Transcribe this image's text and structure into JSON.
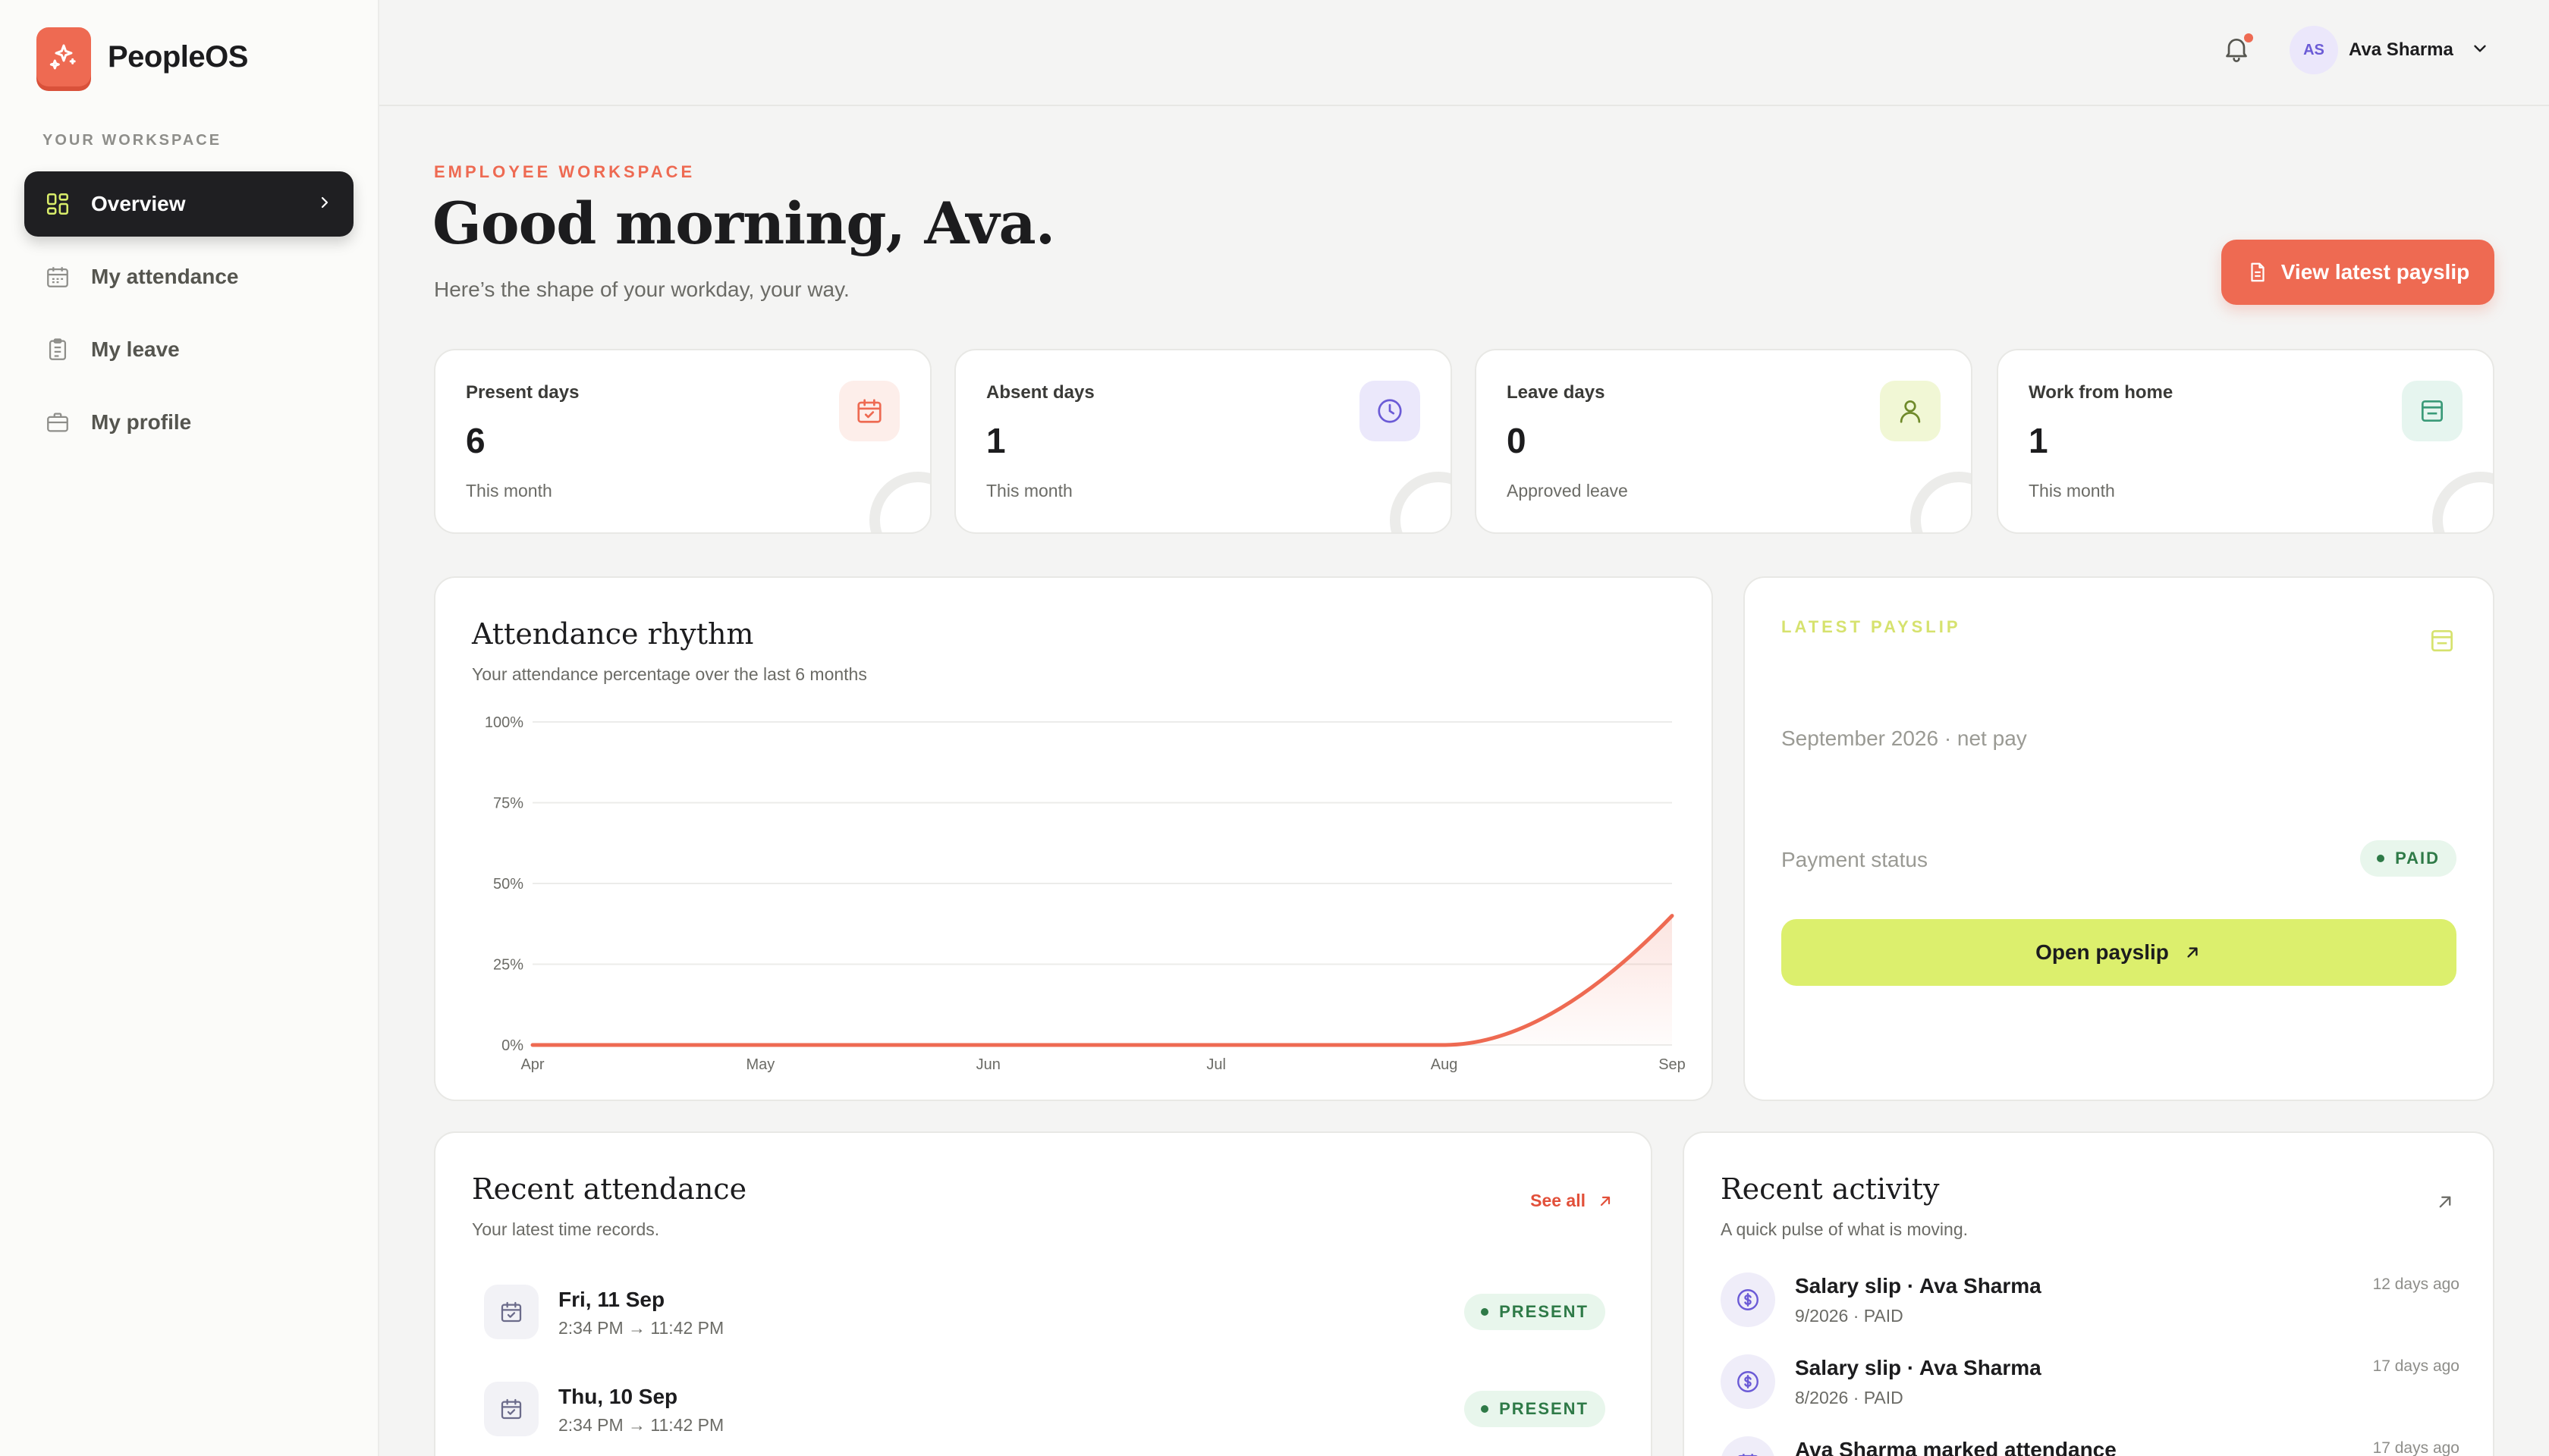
{
  "app": {
    "name": "PeopleOS"
  },
  "sidebar": {
    "caption": "YOUR WORKSPACE",
    "items": [
      {
        "label": "Overview",
        "icon": "grid-icon",
        "active": true
      },
      {
        "label": "My attendance",
        "icon": "calendar-icon",
        "active": false
      },
      {
        "label": "My leave",
        "icon": "clipboard-icon",
        "active": false
      },
      {
        "label": "My profile",
        "icon": "briefcase-icon",
        "active": false
      }
    ]
  },
  "topbar": {
    "notifications_icon": "bell-icon",
    "user": {
      "initials": "AS",
      "name": "Ava Sharma"
    }
  },
  "header": {
    "eyebrow": "EMPLOYEE WORKSPACE",
    "greeting": "Good morning, Ava.",
    "subtitle": "Here’s the shape of your workday, your way.",
    "cta_label": "View latest payslip"
  },
  "stats": [
    {
      "label": "Present days",
      "value": "6",
      "note": "This month",
      "icon": "calendar-check-icon",
      "accent": "#ee6a52"
    },
    {
      "label": "Absent days",
      "value": "1",
      "note": "This month",
      "icon": "clock-icon",
      "accent": "#6b5bd6"
    },
    {
      "label": "Leave days",
      "value": "0",
      "note": "Approved leave",
      "icon": "user-icon",
      "accent": "#8aa63a"
    },
    {
      "label": "Work from home",
      "value": "1",
      "note": "This month",
      "icon": "inbox-icon",
      "accent": "#3a9a78"
    }
  ],
  "attendance_chart": {
    "title": "Attendance rhythm",
    "subtitle": "Your attendance percentage over the last 6 months"
  },
  "chart_data": {
    "type": "area",
    "title": "Attendance rhythm",
    "subtitle": "Your attendance percentage over the last 6 months",
    "categories": [
      "Apr",
      "May",
      "Jun",
      "Jul",
      "Aug",
      "Sep"
    ],
    "values": [
      0,
      0,
      0,
      0,
      0,
      40
    ],
    "ylim": [
      0,
      100
    ],
    "yticks": [
      "0%",
      "25%",
      "50%",
      "75%",
      "100%"
    ],
    "xlabel": "",
    "ylabel": "",
    "grid": true,
    "color": "#ee6a52"
  },
  "payslip": {
    "eyebrow": "LATEST PAYSLIP",
    "period": "September 2026 · net pay",
    "status_label": "Payment status",
    "status": "PAID",
    "button_label": "Open payslip"
  },
  "recent_attendance": {
    "title": "Recent attendance",
    "subtitle": "Your latest time records.",
    "see_all": "See all",
    "rows": [
      {
        "day": "Fri, 11 Sep",
        "time": "2:34 PM → 11:42 PM",
        "status": "PRESENT"
      },
      {
        "day": "Thu, 10 Sep",
        "time": "2:34 PM → 11:42 PM",
        "status": "PRESENT"
      }
    ]
  },
  "recent_activity": {
    "title": "Recent activity",
    "subtitle": "A quick pulse of what is moving.",
    "rows": [
      {
        "title": "Salary slip · Ava Sharma",
        "meta": "9/2026 · PAID",
        "when": "12 days ago"
      },
      {
        "title": "Salary slip · Ava Sharma",
        "meta": "8/2026 · PAID",
        "when": "17 days ago"
      },
      {
        "title": "Ava Sharma marked attendance",
        "meta": "",
        "when": "17 days ago"
      }
    ]
  }
}
